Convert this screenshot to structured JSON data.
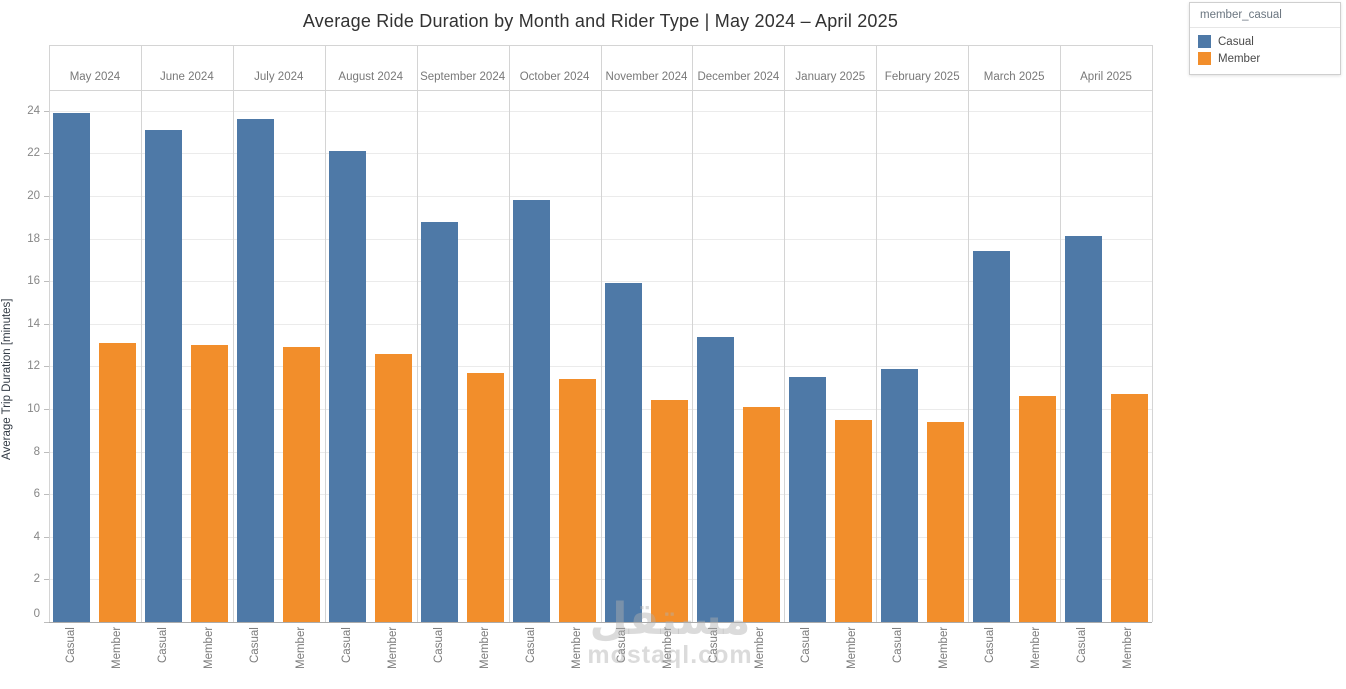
{
  "title": "Average Ride Duration by Month and Rider Type | May 2024 – April 2025",
  "legend": {
    "header": "member_casual",
    "items": [
      {
        "label": "Casual",
        "color": "#4e79a7"
      },
      {
        "label": "Member",
        "color": "#f28e2b"
      }
    ]
  },
  "watermark": {
    "arabic": "مستقل",
    "latin": "mostaql.com"
  },
  "chart_data": {
    "type": "bar",
    "title": "Average Ride Duration by Month and Rider Type | May 2024 – April 2025",
    "categories": [
      "May 2024",
      "June 2024",
      "July 2024",
      "August 2024",
      "September 2024",
      "October 2024",
      "November 2024",
      "December 2024",
      "January 2025",
      "February 2025",
      "March 2025",
      "April 2025"
    ],
    "series": [
      {
        "name": "Casual",
        "color": "#4e79a7",
        "values": [
          23.9,
          23.1,
          23.6,
          22.1,
          18.8,
          19.8,
          15.9,
          13.4,
          11.5,
          11.9,
          17.4,
          18.1
        ]
      },
      {
        "name": "Member",
        "color": "#f28e2b",
        "values": [
          13.1,
          13.0,
          12.9,
          12.6,
          11.7,
          11.4,
          10.4,
          10.1,
          9.5,
          9.4,
          10.6,
          10.7
        ]
      }
    ],
    "bar_group_labels": [
      "Casual",
      "Member"
    ],
    "xlabel": "",
    "ylabel": "Average Trip Duration [minutes]",
    "ylim": [
      0,
      24
    ],
    "yticks": [
      0,
      2,
      4,
      6,
      8,
      10,
      12,
      14,
      16,
      18,
      20,
      22,
      24
    ],
    "grid": "horizontal",
    "legend_title": "member_casual",
    "legend_position": "top-right"
  }
}
